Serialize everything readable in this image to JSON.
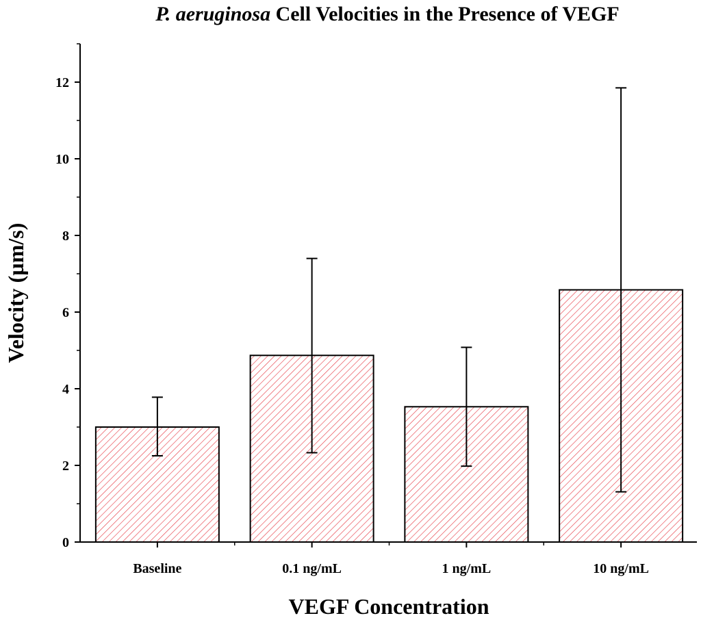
{
  "chart_data": {
    "type": "bar",
    "title_italic": "P. aeruginosa",
    "title_rest": " Cell Velocities in the Presence of VEGF",
    "xlabel": "VEGF Concentration",
    "ylabel": "Velocity (µm/s)",
    "categories": [
      "Baseline",
      "0.1 ng/mL",
      "1 ng/mL",
      "10 ng/mL"
    ],
    "values": [
      3.0,
      4.87,
      3.53,
      6.58
    ],
    "error_low": [
      2.25,
      2.33,
      1.98,
      1.31
    ],
    "error_high": [
      3.78,
      7.4,
      5.08,
      11.85
    ],
    "ylim": [
      0,
      13
    ],
    "yticks": [
      0,
      2,
      4,
      6,
      8,
      10,
      12
    ],
    "ytick_labels": [
      "0",
      "2",
      "4",
      "6",
      "8",
      "10",
      "12"
    ],
    "bar_pattern": "diagonal-hatch",
    "bar_color": "#e8434c",
    "grid": false,
    "legend": "none"
  }
}
